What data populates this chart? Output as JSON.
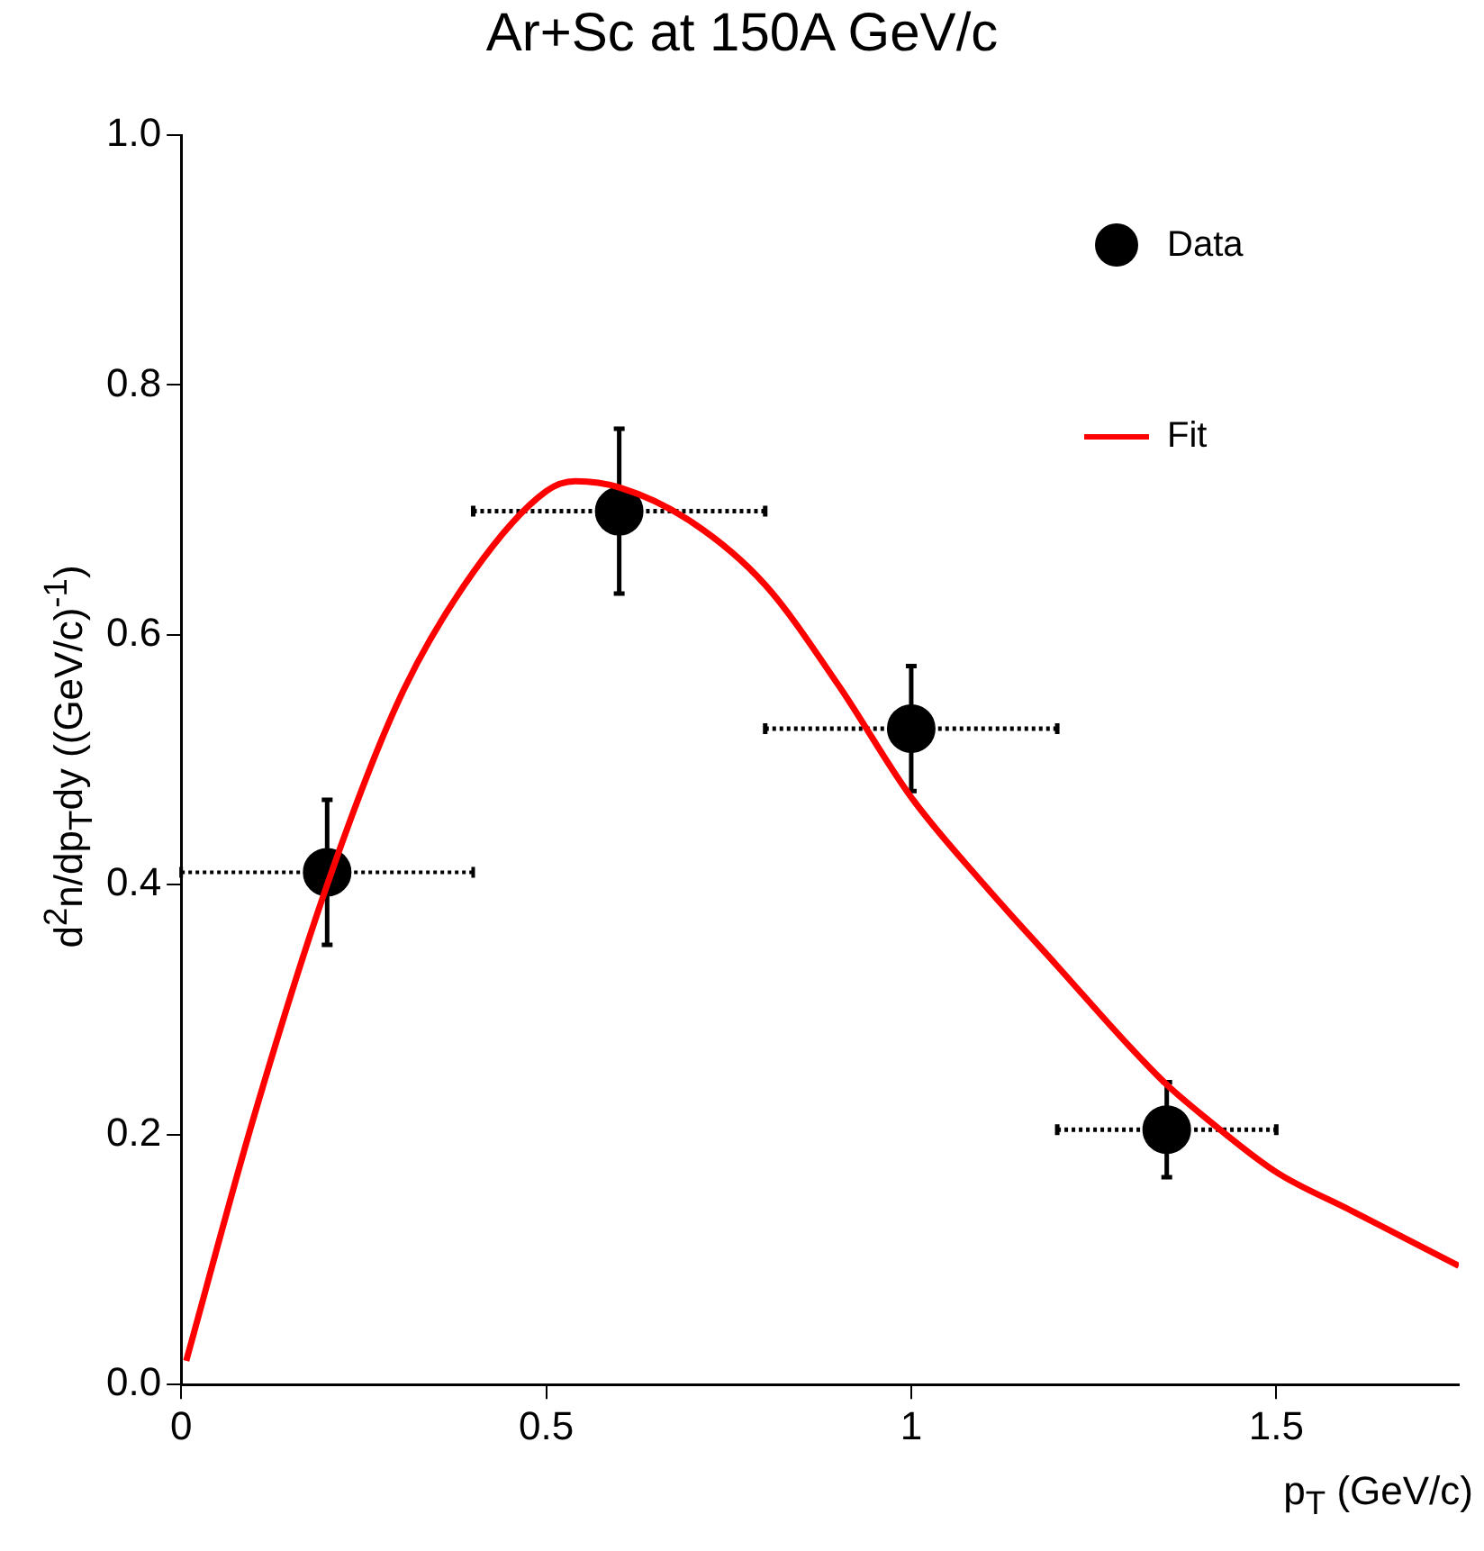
{
  "chart_data": {
    "type": "scatter",
    "title": "Ar+Sc at 150A GeV/c",
    "xlabel": "p$_{T}$ (GeV/c)",
    "ylabel": "d$^{2}$n/dp$_{T}$dy ((GeV/c)$^{-1}$)",
    "xlim": [
      0,
      1.75
    ],
    "xticks": [
      0,
      0.5,
      1,
      1.5
    ],
    "ylim": [
      0,
      1
    ],
    "yticks": [
      {
        "value": 0,
        "label": "0.0"
      },
      {
        "value": 0.2,
        "label": "0.2"
      },
      {
        "value": 0.4,
        "label": "0.4"
      },
      {
        "value": 0.6,
        "label": "0.6"
      },
      {
        "value": 0.8,
        "label": "0.8"
      },
      {
        "value": 1,
        "label": "1.0"
      }
    ],
    "grid": false,
    "legend": "top right",
    "series": [
      {
        "name": "Data",
        "color": "#000000",
        "marker": "circle",
        "x": [
          0.2,
          0.6,
          1.0,
          1.35
        ],
        "values": [
          0.41,
          0.699,
          0.525,
          0.204
        ],
        "errors": [
          0.058,
          0.066,
          0.05,
          0.038
        ],
        "xerrors": [
          0.2,
          0.2,
          0.2,
          0.15
        ]
      },
      {
        "name": "Fit",
        "type": "line",
        "color": "#ff0000",
        "marker": "none",
        "x": [
          0.007,
          0.1,
          0.2,
          0.3,
          0.4,
          0.5,
          0.54,
          0.6,
          0.7,
          0.8,
          0.9,
          1.0,
          1.1,
          1.2,
          1.3,
          1.35,
          1.4,
          1.5,
          1.6,
          1.7,
          1.75
        ],
        "values": [
          0.019,
          0.215,
          0.4,
          0.55,
          0.65,
          0.715,
          0.723,
          0.718,
          0.69,
          0.64,
          0.56,
          0.47,
          0.4,
          0.335,
          0.27,
          0.24,
          0.215,
          0.17,
          0.14,
          0.11,
          0.095
        ]
      }
    ]
  }
}
